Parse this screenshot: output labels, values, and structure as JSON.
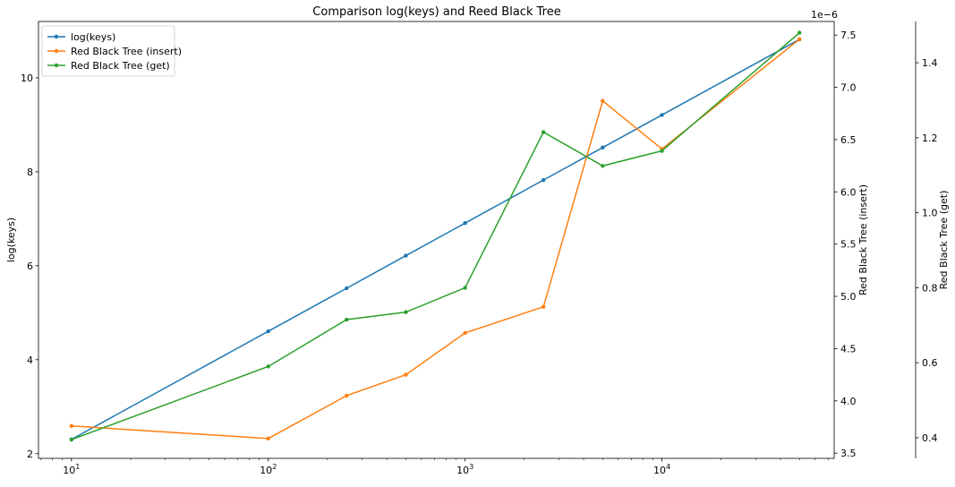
{
  "chart_data": {
    "type": "line",
    "title": "Comparison log(keys) and Reed Black Tree",
    "x": [
      10,
      100,
      250,
      500,
      1000,
      2500,
      5000,
      10000,
      50000
    ],
    "xscale": "log",
    "xlim": [
      6.8,
      75000
    ],
    "xticks": [
      {
        "value": 10,
        "base": "10",
        "exp": "1"
      },
      {
        "value": 100,
        "base": "10",
        "exp": "2"
      },
      {
        "value": 1000,
        "base": "10",
        "exp": "3"
      },
      {
        "value": 10000,
        "base": "10",
        "exp": "4"
      }
    ],
    "grid": false,
    "legend_position": "top-left",
    "series": [
      {
        "name": "log(keys)",
        "axis": "left",
        "color": "#1f77b4",
        "values": [
          2.303,
          4.605,
          5.521,
          6.215,
          6.908,
          7.824,
          8.517,
          9.21,
          10.82
        ]
      },
      {
        "name": "Red Black Tree (insert)",
        "axis": "right",
        "color": "#ff7f0e",
        "values": [
          3.76,
          3.64,
          4.05,
          4.25,
          4.65,
          4.9,
          6.87,
          6.41,
          7.46
        ]
      },
      {
        "name": "Red Black Tree (get)",
        "axis": "right2",
        "color": "#2ca02c",
        "values": [
          0.395,
          0.59,
          0.715,
          0.735,
          0.8,
          1.215,
          1.125,
          1.165,
          1.48
        ]
      }
    ],
    "axes": {
      "left": {
        "label": "log(keys)",
        "lim": [
          1.9,
          11.2
        ],
        "ticks": [
          2,
          4,
          6,
          8,
          10
        ],
        "tick_labels": [
          "2",
          "4",
          "6",
          "8",
          "10"
        ]
      },
      "right": {
        "label": "Red Black Tree (insert)",
        "lim": [
          3.45,
          7.63
        ],
        "offset_text": "1e−6",
        "ticks": [
          3.5,
          4.0,
          4.5,
          5.0,
          5.5,
          6.0,
          6.5,
          7.0,
          7.5
        ],
        "tick_labels": [
          "3.5",
          "4.0",
          "4.5",
          "5.0",
          "5.5",
          "6.0",
          "6.5",
          "7.0",
          "7.5"
        ]
      },
      "right2": {
        "label": "Red Black Tree (get)",
        "lim": [
          0.345,
          1.51
        ],
        "ticks": [
          0.4,
          0.6,
          0.8,
          1.0,
          1.2,
          1.4
        ],
        "tick_labels": [
          "0.4",
          "0.6",
          "0.8",
          "1.0",
          "1.2",
          "1.4"
        ]
      }
    }
  }
}
